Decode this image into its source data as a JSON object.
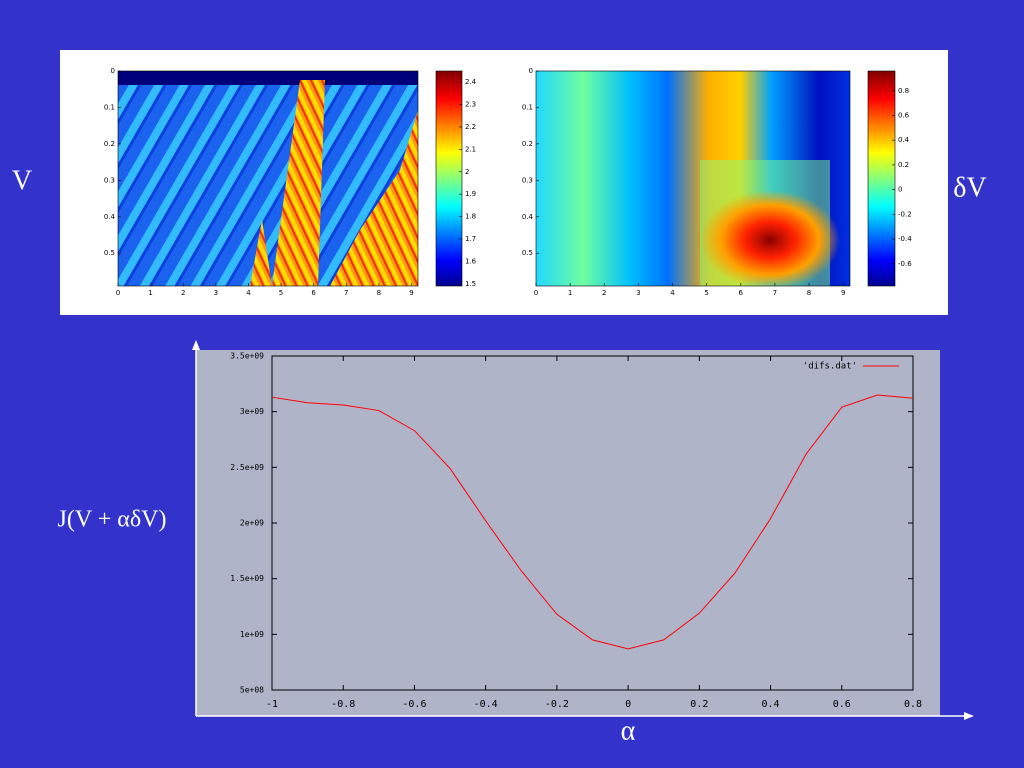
{
  "chart_data": [
    {
      "type": "heatmap",
      "label": "V",
      "xlim": [
        0,
        9.2
      ],
      "xticks": [
        0,
        1,
        2,
        3,
        4,
        5,
        6,
        7,
        8,
        9
      ],
      "ylim": [
        0,
        0.59
      ],
      "yticks": [
        0,
        0.1,
        0.2,
        0.3,
        0.4,
        0.5
      ],
      "y_reversed": true,
      "clim": [
        1.49,
        2.45
      ],
      "cticks": [
        1.5,
        1.6,
        1.7,
        1.8,
        1.9,
        2,
        2.1,
        2.2,
        2.3,
        2.4
      ],
      "colormap": "jet"
    },
    {
      "type": "heatmap",
      "label": "δV",
      "xlim": [
        0,
        9.2
      ],
      "xticks": [
        0,
        1,
        2,
        3,
        4,
        5,
        6,
        7,
        8,
        9
      ],
      "ylim": [
        0,
        0.59
      ],
      "yticks": [
        0,
        0.1,
        0.2,
        0.3,
        0.4,
        0.5
      ],
      "y_reversed": true,
      "clim": [
        -0.78,
        0.96
      ],
      "cticks": [
        -0.6,
        -0.4,
        -0.2,
        0,
        0.2,
        0.4,
        0.6,
        0.8
      ],
      "colormap": "jet"
    },
    {
      "type": "line",
      "ylabel": "J(V + αδV)",
      "xlabel": "α",
      "x": [
        -1,
        -0.9,
        -0.8,
        -0.7,
        -0.6,
        -0.5,
        -0.4,
        -0.3,
        -0.2,
        -0.1,
        0,
        0.1,
        0.2,
        0.3,
        0.4,
        0.5,
        0.6,
        0.7,
        0.8
      ],
      "series": [
        {
          "name": "'difs.dat'",
          "color": "#ff0000",
          "values": [
            3130000000,
            3080000000,
            3060000000,
            3010000000,
            2830000000,
            2490000000,
            2020000000,
            1570000000,
            1180000000,
            950000000,
            870000000,
            950000000,
            1190000000,
            1550000000,
            2040000000,
            2620000000,
            3040000000,
            3150000000,
            3120000000
          ]
        }
      ],
      "xlim": [
        -1,
        0.8
      ],
      "xticks": [
        -1,
        -0.8,
        -0.6,
        -0.4,
        -0.2,
        0,
        0.2,
        0.4,
        0.6,
        0.8
      ],
      "ylim": [
        500000000,
        3500000000
      ],
      "yticks": [
        {
          "value": 500000000,
          "label": "5e+08"
        },
        {
          "value": 1000000000,
          "label": "1e+09"
        },
        {
          "value": 1500000000,
          "label": "1.5e+09"
        },
        {
          "value": 2000000000,
          "label": "2e+09"
        },
        {
          "value": 2500000000,
          "label": "2.5e+09"
        },
        {
          "value": 3000000000,
          "label": "3e+09"
        },
        {
          "value": 3500000000,
          "label": "3.5e+09"
        }
      ],
      "legend": "upper right",
      "grid": false
    }
  ]
}
